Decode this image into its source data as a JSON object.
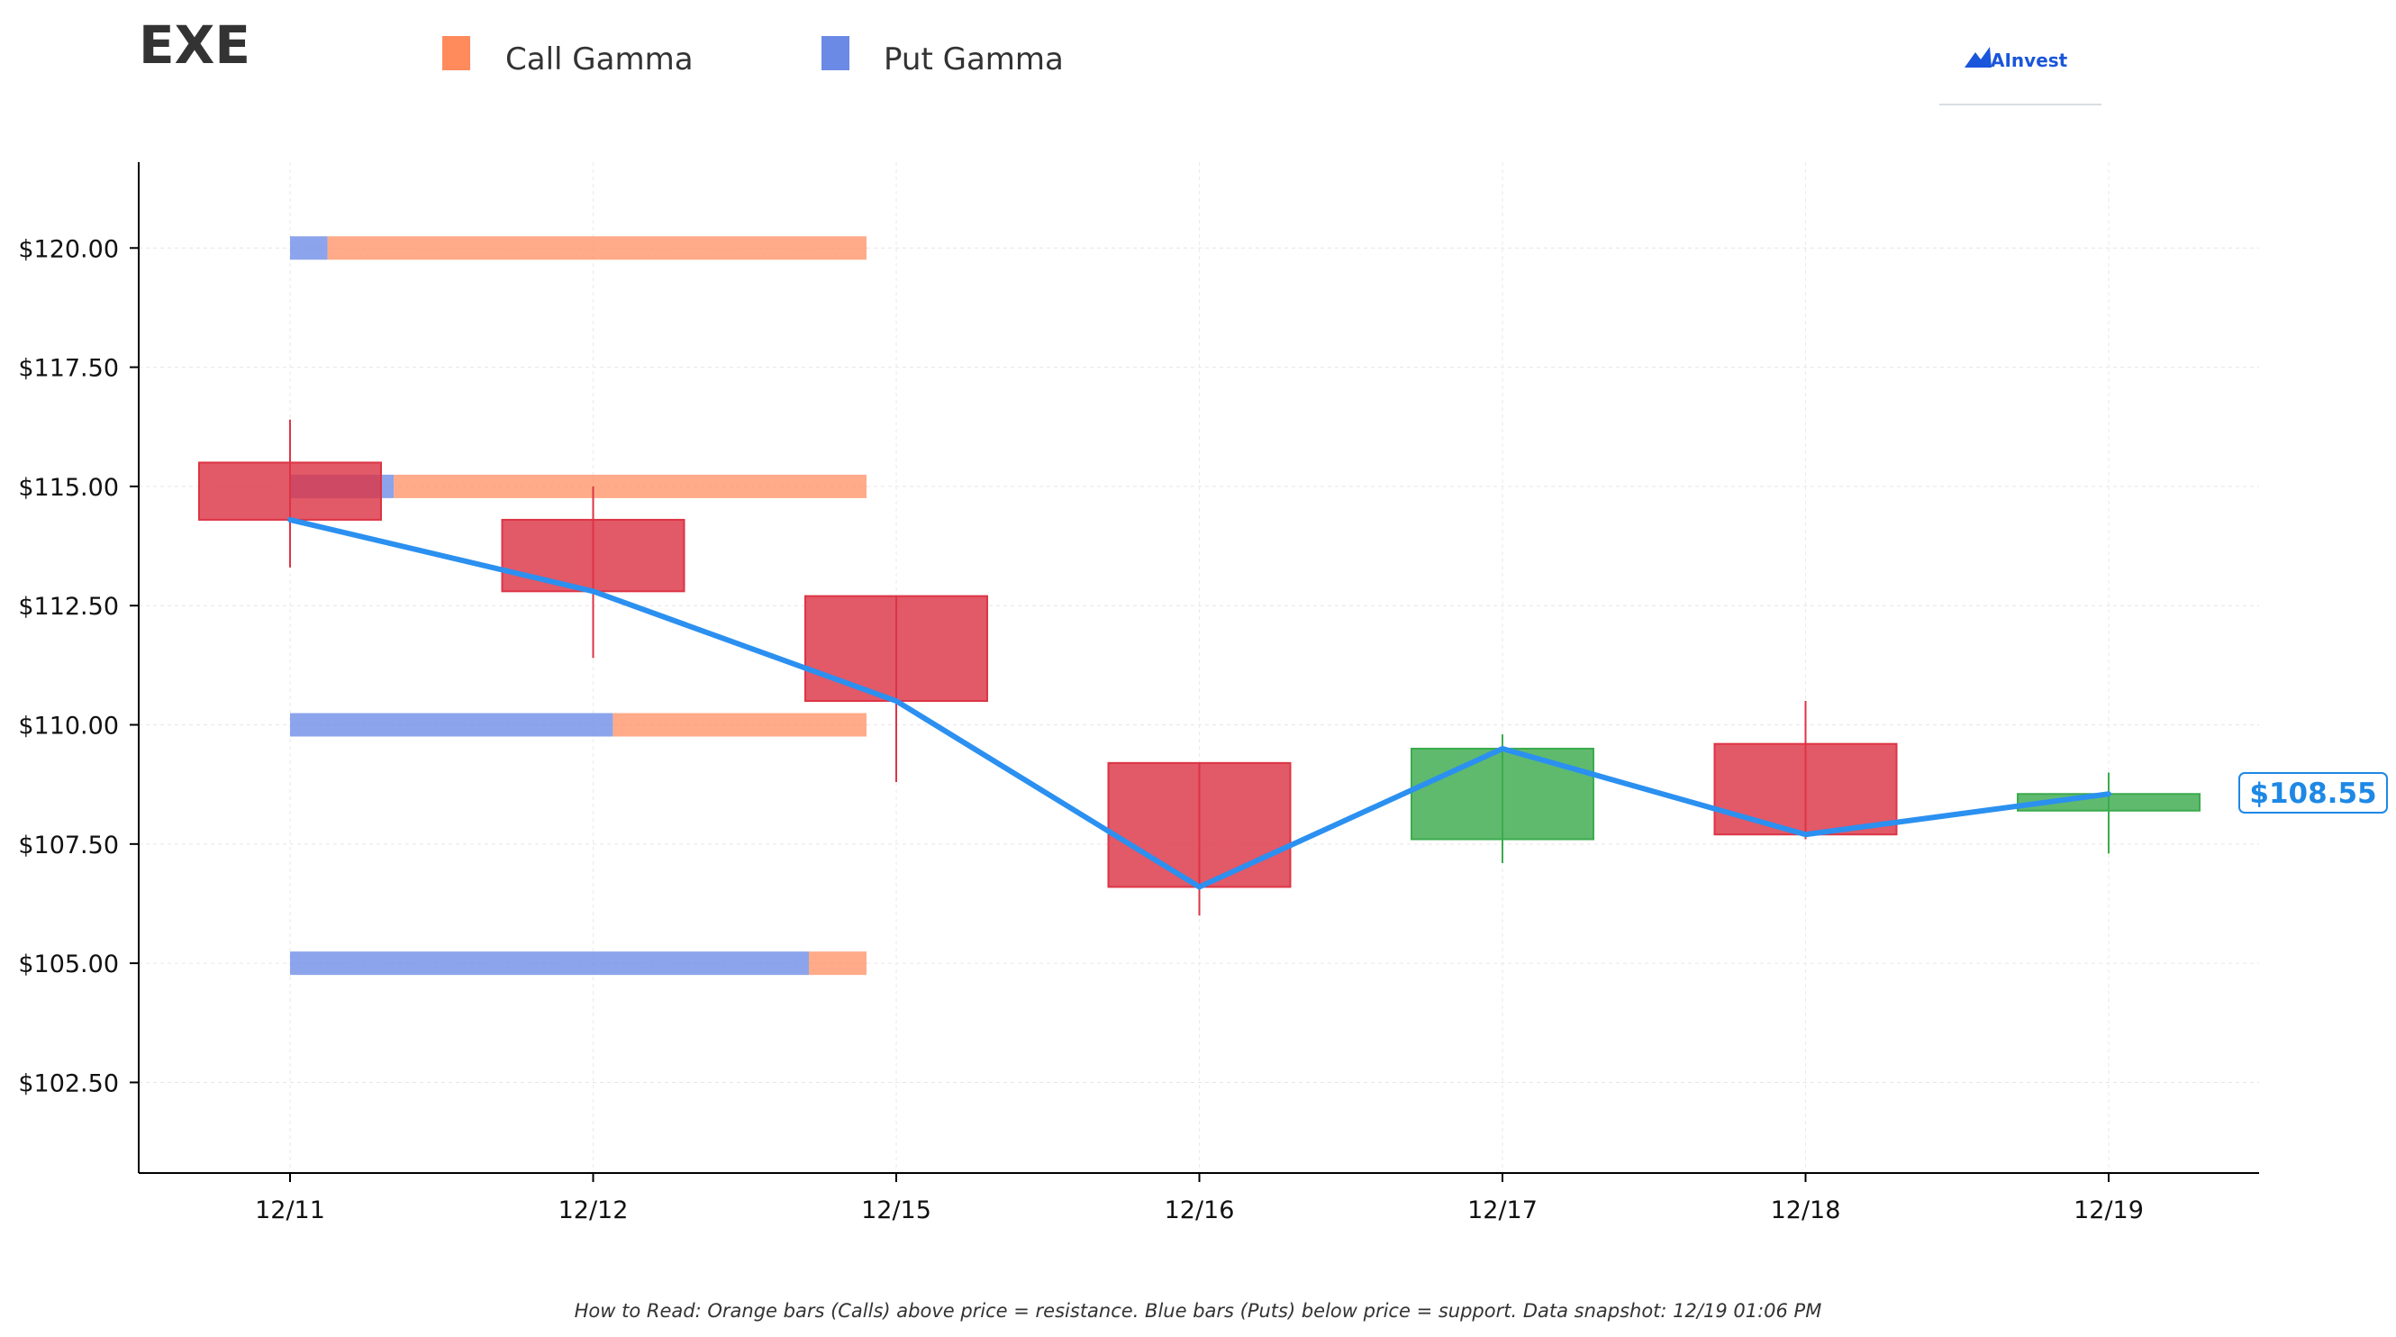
{
  "chart_data": {
    "type": "candlestick",
    "title": "EXE",
    "legend": [
      {
        "name": "Call Gamma",
        "color": "#ff8a5c"
      },
      {
        "name": "Put Gamma",
        "color": "#6b8ae6"
      }
    ],
    "legend_placement": "top",
    "categories": [
      "12/11",
      "12/12",
      "12/15",
      "12/16",
      "12/17",
      "12/18",
      "12/19"
    ],
    "y_ticks": [
      "$102.50",
      "$105.00",
      "$107.50",
      "$110.00",
      "$112.50",
      "$115.00",
      "$117.50",
      "$120.00"
    ],
    "y_tick_values": [
      102.5,
      105,
      107.5,
      110,
      112.5,
      115,
      117.5,
      120
    ],
    "ylim": [
      100.6,
      121.8
    ],
    "candles": [
      {
        "date": "12/11",
        "open": 115.5,
        "high": 116.4,
        "low": 113.3,
        "close": 114.3
      },
      {
        "date": "12/12",
        "open": 114.3,
        "high": 115.0,
        "low": 111.4,
        "close": 112.8
      },
      {
        "date": "12/15",
        "open": 112.7,
        "high": 112.7,
        "low": 108.8,
        "close": 110.5
      },
      {
        "date": "12/16",
        "open": 109.2,
        "high": 109.2,
        "low": 106.0,
        "close": 106.6
      },
      {
        "date": "12/17",
        "open": 107.6,
        "high": 109.8,
        "low": 107.1,
        "close": 109.5
      },
      {
        "date": "12/18",
        "open": 109.6,
        "high": 110.5,
        "low": 107.6,
        "close": 107.7
      },
      {
        "date": "12/19",
        "open": 108.2,
        "high": 109.0,
        "low": 107.3,
        "close": 108.55
      }
    ],
    "close_line": [
      114.3,
      112.8,
      110.5,
      106.6,
      109.5,
      107.7,
      108.55
    ],
    "gamma_levels": [
      {
        "strike": 120.0,
        "put": 0.065,
        "call": 0.935
      },
      {
        "strike": 115.0,
        "put": 0.18,
        "call": 0.82
      },
      {
        "strike": 110.0,
        "put": 0.56,
        "call": 0.44
      },
      {
        "strike": 105.0,
        "put": 0.9,
        "call": 0.1
      }
    ],
    "current_price_label": "$108.55",
    "grid": true,
    "colors": {
      "up": "#3cab4e",
      "down": "#dc3545",
      "line": "#2b90f0",
      "price_label": "#1e88e5"
    }
  },
  "logo": {
    "text": "AInvest"
  },
  "footnote": "How to Read: Orange bars (Calls) above price = resistance. Blue bars (Puts) below price = support. Data snapshot: 12/19 01:06 PM"
}
